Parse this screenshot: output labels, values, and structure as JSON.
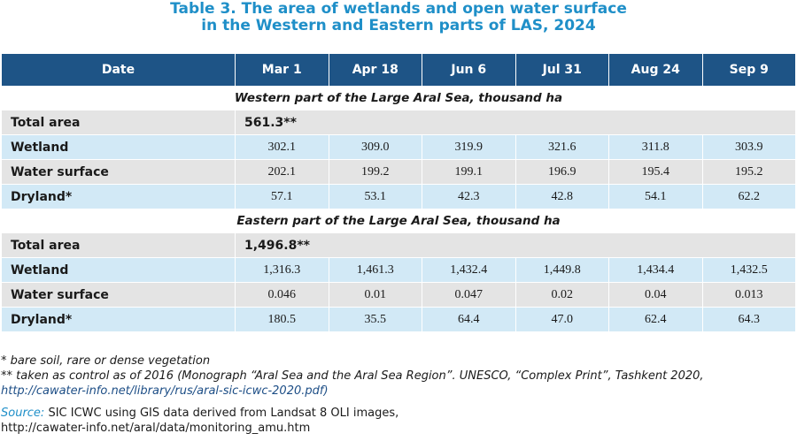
{
  "title": {
    "line1": "Table 3. The area of wetlands and open water surface",
    "line2": "in the Western and Eastern parts of LAS, 2024"
  },
  "table": {
    "headers": [
      "Date",
      "Mar 1",
      "Apr 18",
      "Jun 6",
      "Jul 31",
      "Aug 24",
      "Sep 9"
    ],
    "sections": [
      {
        "title": "Western part of the Large Aral Sea, thousand ha",
        "total_label": "Total area",
        "total_value": "561.3**",
        "rows": [
          {
            "label": "Wetland",
            "values": [
              "302.1",
              "309.0",
              "319.9",
              "321.6",
              "311.8",
              "303.9"
            ]
          },
          {
            "label": "Water surface",
            "values": [
              "202.1",
              "199.2",
              "199.1",
              "196.9",
              "195.4",
              "195.2"
            ]
          },
          {
            "label": "Dryland*",
            "values": [
              "57.1",
              "53.1",
              "42.3",
              "42.8",
              "54.1",
              "62.2"
            ]
          }
        ]
      },
      {
        "title": "Eastern part of the Large Aral Sea, thousand ha",
        "total_label": "Total area",
        "total_value": "1,496.8**",
        "rows": [
          {
            "label": "Wetland",
            "values": [
              "1,316.3",
              "1,461.3",
              "1,432.4",
              "1,449.8",
              "1,434.4",
              "1,432.5"
            ]
          },
          {
            "label": "Water surface",
            "values": [
              "0.046",
              "0.01",
              "0.047",
              "0.02",
              "0.04",
              "0.013"
            ]
          },
          {
            "label": "Dryland*",
            "values": [
              "180.5",
              "35.5",
              "64.4",
              "47.0",
              "62.4",
              "64.3"
            ]
          }
        ]
      }
    ]
  },
  "footnotes": {
    "note1": "* bare soil, rare or dense vegetation",
    "note2": "** taken as control as of 2016 (Monograph “Aral Sea and the Aral Sea Region”. UNESCO, “Complex Print”, Tashkent 2020,",
    "note2_link": "http://cawater-info.net/library/rus/aral-sic-icwc-2020.pdf)",
    "source_label": "Source:",
    "source_text": " SIC ICWC using GIS data derived from Landsat 8 OLI images,",
    "source_link": "http://cawater-info.net/aral/data/monitoring_amu.htm"
  }
}
